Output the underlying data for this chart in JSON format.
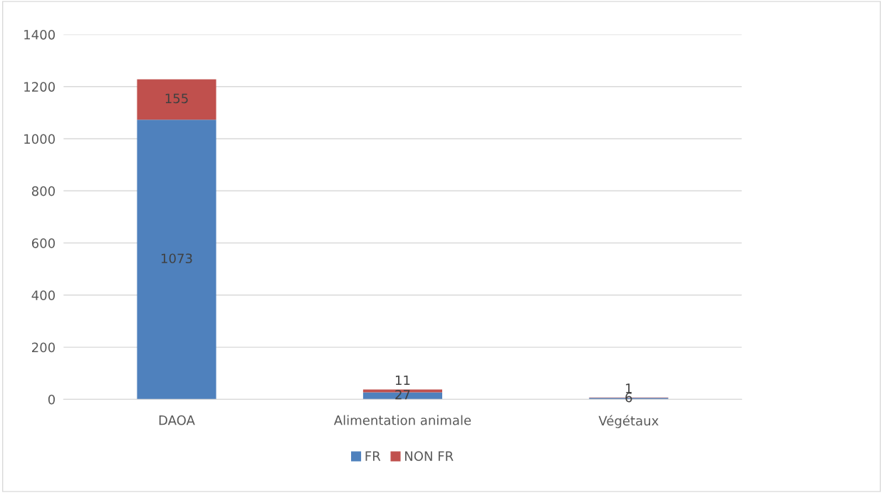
{
  "chart_data": {
    "type": "bar",
    "stacked": true,
    "categories": [
      "DAOA",
      "Alimentation animale",
      "Végétaux"
    ],
    "series": [
      {
        "name": "FR",
        "color": "#4f81bd",
        "values": [
          1073,
          27,
          6
        ]
      },
      {
        "name": "NON FR",
        "color": "#c0504d",
        "values": [
          155,
          11,
          1
        ]
      }
    ],
    "ylim": [
      0,
      1400
    ],
    "yticks": [
      0,
      200,
      400,
      600,
      800,
      1000,
      1200,
      1400
    ],
    "grid": "y",
    "legend": "bottom",
    "data_labels": true
  }
}
